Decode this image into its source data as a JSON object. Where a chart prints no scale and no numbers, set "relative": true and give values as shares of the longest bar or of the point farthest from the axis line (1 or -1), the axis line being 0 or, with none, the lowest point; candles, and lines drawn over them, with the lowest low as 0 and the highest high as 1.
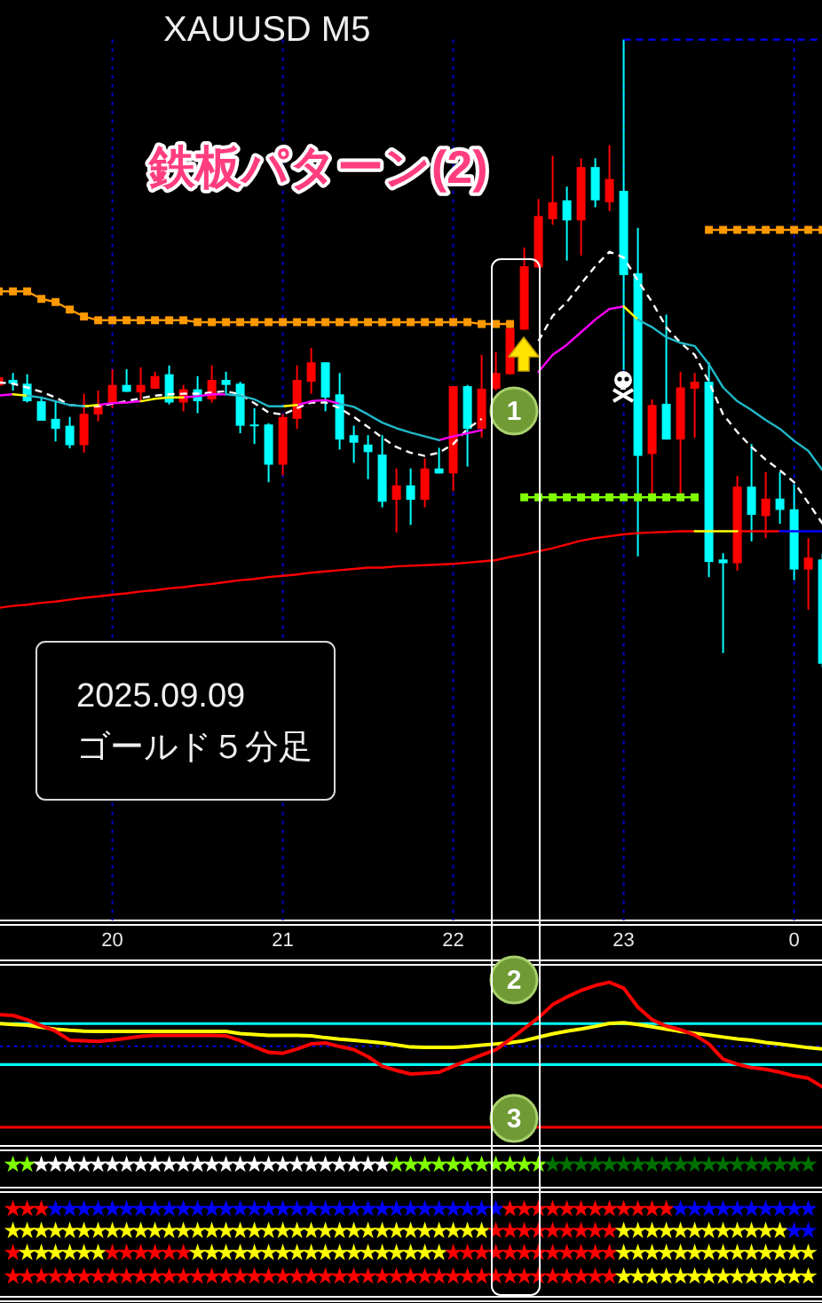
{
  "chart_data": [
    {
      "type": "candlestick",
      "title": "XAUUSD M5",
      "subtitle": "鉄板パターン(2)",
      "annotations": [
        "2025.09.09",
        "ゴールド５分足",
        "1"
      ],
      "relative": true,
      "grid": "x",
      "tick_labels": "x",
      "categories": [
        null,
        null,
        null,
        null,
        null,
        null,
        null,
        null,
        "20",
        null,
        null,
        null,
        null,
        null,
        null,
        null,
        null,
        null,
        null,
        null,
        "21",
        null,
        null,
        null,
        null,
        null,
        null,
        null,
        null,
        null,
        null,
        null,
        "22",
        null,
        null,
        null,
        null,
        null,
        null,
        null,
        null,
        null,
        null,
        null,
        "23",
        null,
        null,
        null,
        null,
        null,
        null,
        null,
        null,
        null,
        null,
        null,
        "0",
        null,
        null
      ],
      "ohlc": [
        [
          0.449,
          0.464,
          0.447,
          0.462
        ],
        [
          0.458,
          0.469,
          0.441,
          0.452
        ],
        [
          0.452,
          0.467,
          0.422,
          0.424
        ],
        [
          0.424,
          0.43,
          0.393,
          0.393
        ],
        [
          0.396,
          0.424,
          0.36,
          0.38
        ],
        [
          0.385,
          0.399,
          0.349,
          0.354
        ],
        [
          0.354,
          0.436,
          0.342,
          0.404
        ],
        [
          0.403,
          0.441,
          0.392,
          0.418
        ],
        [
          0.42,
          0.475,
          0.413,
          0.45
        ],
        [
          0.45,
          0.475,
          0.439,
          0.439
        ],
        [
          0.438,
          0.478,
          0.424,
          0.45
        ],
        [
          0.444,
          0.471,
          0.444,
          0.464
        ],
        [
          0.467,
          0.481,
          0.419,
          0.422
        ],
        [
          0.422,
          0.45,
          0.408,
          0.443
        ],
        [
          0.443,
          0.464,
          0.405,
          0.424
        ],
        [
          0.427,
          0.481,
          0.422,
          0.458
        ],
        [
          0.458,
          0.471,
          0.436,
          0.45
        ],
        [
          0.452,
          0.455,
          0.373,
          0.385
        ],
        [
          0.387,
          0.413,
          0.356,
          0.385
        ],
        [
          0.387,
          0.389,
          0.295,
          0.323
        ],
        [
          0.323,
          0.404,
          0.306,
          0.399
        ],
        [
          0.396,
          0.481,
          0.38,
          0.458
        ],
        [
          0.455,
          0.509,
          0.436,
          0.486
        ],
        [
          0.486,
          0.486,
          0.408,
          0.43
        ],
        [
          0.435,
          0.469,
          0.347,
          0.363
        ],
        [
          0.37,
          0.385,
          0.326,
          0.358
        ],
        [
          0.355,
          0.37,
          0.3,
          0.343
        ],
        [
          0.339,
          0.37,
          0.255,
          0.264
        ],
        [
          0.267,
          0.317,
          0.215,
          0.29
        ],
        [
          0.29,
          0.317,
          0.227,
          0.267
        ],
        [
          0.267,
          0.333,
          0.255,
          0.317
        ],
        [
          0.317,
          0.35,
          0.309,
          0.309
        ],
        [
          0.309,
          0.448,
          0.281,
          0.448
        ],
        [
          0.448,
          0.45,
          0.32,
          0.38
        ],
        [
          0.38,
          0.498,
          0.366,
          0.444
        ],
        [
          0.444,
          0.502,
          0.441,
          0.469
        ],
        [
          0.467,
          0.546,
          0.467,
          0.54
        ],
        [
          0.538,
          0.669,
          0.538,
          0.639
        ],
        [
          0.637,
          0.746,
          0.637,
          0.719
        ],
        [
          0.714,
          0.815,
          0.705,
          0.741
        ],
        [
          0.744,
          0.766,
          0.648,
          0.712
        ],
        [
          0.712,
          0.811,
          0.656,
          0.797
        ],
        [
          0.797,
          0.811,
          0.733,
          0.744
        ],
        [
          0.741,
          0.832,
          0.727,
          0.778
        ],
        [
          0.759,
          1,
          0.474,
          0.625
        ],
        [
          0.628,
          0.7,
          0.177,
          0.337
        ],
        [
          0.34,
          0.427,
          0.276,
          0.418
        ],
        [
          0.42,
          0.562,
          0.363,
          0.363
        ],
        [
          0.363,
          0.471,
          0.271,
          0.446
        ],
        [
          0.444,
          0.469,
          0.366,
          0.455
        ],
        [
          0.455,
          0.486,
          0.144,
          0.168
        ],
        [
          0.172,
          0.182,
          0.023,
          0.166
        ],
        [
          0.166,
          0.305,
          0.154,
          0.288
        ],
        [
          0.288,
          0.356,
          0.201,
          0.243
        ],
        [
          0.241,
          0.311,
          0.206,
          0.269
        ],
        [
          0.269,
          0.311,
          0.229,
          0.251
        ],
        [
          0.252,
          0.292,
          0.139,
          0.156
        ],
        [
          0.156,
          0.206,
          0.092,
          0.175
        ],
        [
          0.172,
          0.181,
          0,
          0.006
        ]
      ],
      "colors": [
        "#ff0000",
        "#00ffff",
        "#00ffff",
        "#00ffff",
        "#00ffff",
        "#00ffff",
        "#ff0000",
        "#ff0000",
        "#ff0000",
        "#00ffff",
        "#ff0000",
        "#ff0000",
        "#00ffff",
        "#ff0000",
        "#00ffff",
        "#ff0000",
        "#00ffff",
        "#00ffff",
        "#00ffff",
        "#00ffff",
        "#ff0000",
        "#ff0000",
        "#ff0000",
        "#00ffff",
        "#00ffff",
        "#00ffff",
        "#00ffff",
        "#00ffff",
        "#ff0000",
        "#00ffff",
        "#ff0000",
        "#00ffff",
        "#ff0000",
        "#00ffff",
        "#ff0000",
        "#ff0000",
        "#ff0000",
        "#ff0000",
        "#ff0000",
        "#ff0000",
        "#00ffff",
        "#ff0000",
        "#00ffff",
        "#ff0000",
        "#00ffff",
        "#00ffff",
        "#ff0000",
        "#00ffff",
        "#ff0000",
        "#ff0000",
        "#00ffff",
        "#00ffff",
        "#ff0000",
        "#00ffff",
        "#ff0000",
        "#00ffff",
        "#00ffff",
        "#ff0000",
        "#00ffff"
      ],
      "series": [
        {
          "type": "line",
          "color": "#ff0000",
          "values": [
            0.095,
            0.098,
            0.1,
            0.103,
            0.105,
            0.108,
            0.111,
            0.113,
            0.116,
            0.118,
            0.121,
            0.123,
            0.126,
            0.128,
            0.131,
            0.133,
            0.136,
            0.139,
            0.141,
            0.144,
            0.146,
            0.148,
            0.151,
            0.153,
            0.155,
            0.157,
            0.159,
            0.159,
            0.161,
            0.162,
            0.163,
            0.164,
            0.165,
            0.167,
            0.169,
            0.171,
            0.176,
            0.18,
            0.185,
            0.19,
            0.196,
            0.202,
            0.206,
            0.209,
            0.212,
            0.214,
            0.215,
            0.216,
            0.217,
            0.217,
            null,
            null,
            0.217,
            0.217,
            0.217,
            0.217,
            null,
            null,
            null
          ]
        },
        {
          "type": "line",
          "color": "#ffff00",
          "values": [
            null,
            null,
            null,
            null,
            null,
            null,
            null,
            null,
            null,
            null,
            null,
            null,
            null,
            null,
            null,
            null,
            null,
            null,
            null,
            null,
            null,
            null,
            null,
            null,
            null,
            null,
            null,
            null,
            null,
            null,
            null,
            null,
            null,
            null,
            null,
            null,
            null,
            null,
            null,
            null,
            null,
            null,
            null,
            null,
            null,
            null,
            null,
            null,
            null,
            0.217,
            0.217,
            0.217,
            0.217,
            null,
            null,
            null,
            null,
            null,
            null
          ]
        },
        {
          "type": "line",
          "color": "#0000ff",
          "values": [
            null,
            null,
            null,
            null,
            null,
            null,
            null,
            null,
            null,
            null,
            null,
            null,
            null,
            null,
            null,
            null,
            null,
            null,
            null,
            null,
            null,
            null,
            null,
            null,
            null,
            null,
            null,
            null,
            null,
            null,
            null,
            null,
            null,
            null,
            null,
            null,
            null,
            null,
            null,
            null,
            null,
            null,
            null,
            null,
            null,
            null,
            null,
            null,
            null,
            null,
            null,
            null,
            null,
            null,
            null,
            0.217,
            0.217,
            0.217,
            0.217
          ]
        },
        {
          "type": "line",
          "color": "#ff9900",
          "marker": "square",
          "values": [
            0.599,
            0.599,
            0.599,
            0.587,
            0.582,
            0.57,
            0.559,
            0.553,
            0.553,
            0.553,
            0.553,
            0.553,
            0.553,
            0.553,
            0.55,
            0.55,
            0.55,
            0.55,
            0.55,
            0.55,
            0.55,
            0.55,
            0.55,
            0.55,
            0.55,
            0.55,
            0.55,
            0.55,
            0.55,
            0.55,
            0.55,
            0.55,
            0.55,
            0.55,
            0.547,
            0.547,
            0.547,
            null,
            null,
            null,
            null,
            null,
            null,
            null,
            null,
            null,
            null,
            null,
            null,
            null,
            0.697,
            0.697,
            0.697,
            0.697,
            0.697,
            0.697,
            0.697,
            0.697,
            0.697
          ]
        },
        {
          "type": "line",
          "color": "#80ff00",
          "marker": "square",
          "values": [
            null,
            null,
            null,
            null,
            null,
            null,
            null,
            null,
            null,
            null,
            null,
            null,
            null,
            null,
            null,
            null,
            null,
            null,
            null,
            null,
            null,
            null,
            null,
            null,
            null,
            null,
            null,
            null,
            null,
            null,
            null,
            null,
            null,
            null,
            null,
            null,
            null,
            0.271,
            0.271,
            0.271,
            0.271,
            0.271,
            0.271,
            0.271,
            0.271,
            0.271,
            0.271,
            0.271,
            0.271,
            0.271,
            null,
            null,
            null,
            null,
            null,
            null,
            null,
            null,
            null
          ]
        },
        {
          "type": "line",
          "color": "#0000ff",
          "line_style": "dashed",
          "values": [
            null,
            null,
            null,
            null,
            null,
            null,
            null,
            null,
            null,
            null,
            null,
            null,
            null,
            null,
            null,
            null,
            null,
            null,
            null,
            null,
            null,
            null,
            null,
            null,
            null,
            null,
            null,
            null,
            null,
            null,
            null,
            null,
            null,
            null,
            null,
            null,
            null,
            null,
            null,
            null,
            null,
            null,
            null,
            null,
            1,
            1,
            1,
            1,
            1,
            1,
            1,
            1,
            1,
            1,
            1,
            1,
            1,
            1,
            1
          ]
        },
        {
          "type": "line",
          "color": "#ffffff",
          "line_style": "dashed",
          "values": [
            0.454,
            0.452,
            0.446,
            0.439,
            0.43,
            0.418,
            0.416,
            0.416,
            0.42,
            0.424,
            0.429,
            0.433,
            0.435,
            0.436,
            0.436,
            0.438,
            0.44,
            0.435,
            0.421,
            0.406,
            0.403,
            0.413,
            0.422,
            0.422,
            0.413,
            0.399,
            0.383,
            0.366,
            0.351,
            0.342,
            0.337,
            0.342,
            0.356,
            0.38,
            0.396,
            null,
            null,
            null,
            0.52,
            0.56,
            0.582,
            0.611,
            0.639,
            0.662,
            0.653,
            0.616,
            0.582,
            0.542,
            0.517,
            0.498,
            0.455,
            0.403,
            0.375,
            0.351,
            0.331,
            0.314,
            0.295,
            0.262,
            0.229
          ]
        },
        {
          "type": "line",
          "color": "#ff00ff",
          "values": [
            0.433,
            0.435,
            null,
            null,
            null,
            null,
            null,
            0.418,
            0.421,
            0.422,
            0.424,
            null,
            null,
            0.43,
            0.432,
            0.435,
            0.435,
            null,
            null,
            null,
            null,
            0.418,
            0.424,
            0.426,
            0.42,
            null,
            null,
            null,
            null,
            null,
            null,
            0.362,
            0.368,
            0.373,
            0.378,
            null,
            null,
            null,
            0.471,
            0.498,
            0.514,
            0.534,
            0.554,
            0.571,
            0.575,
            null,
            null,
            null,
            null,
            null,
            null,
            null,
            null,
            null,
            null,
            null,
            null,
            null,
            null
          ]
        },
        {
          "type": "line",
          "color": "#ffff00",
          "values": [
            null,
            0.435,
            0.433,
            null,
            null,
            null,
            0.416,
            0.418,
            null,
            null,
            0.424,
            0.428,
            0.43,
            0.43,
            null,
            null,
            null,
            null,
            null,
            null,
            0.416,
            0.418,
            null,
            null,
            null,
            null,
            null,
            null,
            null,
            null,
            null,
            null,
            null,
            null,
            null,
            null,
            null,
            null,
            null,
            null,
            null,
            null,
            null,
            null,
            0.575,
            0.554,
            null,
            null,
            null,
            null,
            null,
            null,
            null,
            null,
            null,
            null,
            null,
            null,
            null
          ]
        },
        {
          "type": "line",
          "color": "#20b8c8",
          "values": [
            null,
            null,
            0.433,
            0.43,
            0.424,
            0.418,
            0.416,
            null,
            null,
            null,
            null,
            null,
            null,
            null,
            null,
            null,
            0.435,
            0.433,
            0.427,
            0.416,
            0.416,
            null,
            null,
            null,
            0.42,
            0.415,
            0.403,
            0.39,
            0.381,
            0.374,
            0.368,
            0.362,
            null,
            null,
            null,
            null,
            null,
            null,
            null,
            null,
            null,
            null,
            null,
            null,
            null,
            0.554,
            0.542,
            0.526,
            0.517,
            0.512,
            0.483,
            0.446,
            0.424,
            0.41,
            0.394,
            0.38,
            0.361,
            0.345,
            0.314
          ]
        }
      ]
    },
    {
      "type": "line",
      "annotations": [
        "2",
        "3"
      ],
      "relative": true,
      "tick_labels": false,
      "categories": [
        null,
        null,
        null,
        null,
        null,
        null,
        null,
        null,
        null,
        null,
        null,
        null,
        null,
        null,
        null,
        null,
        null,
        null,
        null,
        null,
        null,
        null,
        null,
        null,
        null,
        null,
        null,
        null,
        null,
        null,
        null,
        null,
        null,
        null,
        null,
        null,
        null,
        null,
        null,
        null,
        null,
        null,
        null,
        null,
        null,
        null,
        null,
        null,
        null,
        null,
        null,
        null,
        null,
        null,
        null,
        null,
        null,
        null,
        null
      ],
      "ref_lines": [
        {
          "axis": "y",
          "value": 0.747,
          "color": "#00ffff"
        },
        {
          "axis": "y",
          "value": 0.497,
          "color": "#00ffff"
        },
        {
          "axis": "y",
          "value": 0.609,
          "color": "#0000ff",
          "line_style": "dotted"
        },
        {
          "axis": "y",
          "value": 0.114,
          "color": "#ff0000"
        }
      ],
      "series": [
        {
          "color": "#ffff00",
          "values": [
            0.747,
            0.742,
            0.738,
            0.725,
            0.713,
            0.706,
            0.701,
            0.7,
            0.7,
            0.7,
            0.7,
            0.7,
            0.7,
            0.7,
            0.7,
            0.7,
            0.7,
            0.686,
            0.681,
            0.675,
            0.675,
            0.675,
            0.672,
            0.661,
            0.652,
            0.645,
            0.637,
            0.629,
            0.617,
            0.604,
            0.602,
            0.602,
            0.602,
            0.608,
            0.615,
            0.623,
            0.631,
            0.643,
            0.664,
            0.685,
            0.701,
            0.714,
            0.73,
            0.748,
            0.753,
            0.742,
            0.728,
            0.713,
            0.7,
            0.688,
            0.676,
            0.665,
            0.654,
            0.645,
            0.632,
            0.622,
            0.611,
            0.6,
            0.592
          ]
        },
        {
          "color": "#ff0000",
          "values": [
            0.801,
            0.797,
            0.771,
            0.734,
            0.701,
            0.646,
            0.642,
            0.638,
            0.647,
            0.658,
            0.67,
            0.675,
            0.675,
            0.675,
            0.675,
            0.675,
            0.672,
            0.643,
            0.605,
            0.572,
            0.566,
            0.592,
            0.623,
            0.629,
            0.607,
            0.588,
            0.545,
            0.487,
            0.461,
            0.439,
            0.444,
            0.45,
            0.487,
            0.521,
            0.555,
            0.588,
            0.65,
            0.717,
            0.783,
            0.863,
            0.91,
            0.95,
            0.98,
            1,
            0.963,
            0.847,
            0.771,
            0.732,
            0.71,
            0.677,
            0.623,
            0.529,
            0.499,
            0.478,
            0.468,
            0.45,
            0.428,
            0.413,
            0.36
          ]
        }
      ]
    }
  ]
}
